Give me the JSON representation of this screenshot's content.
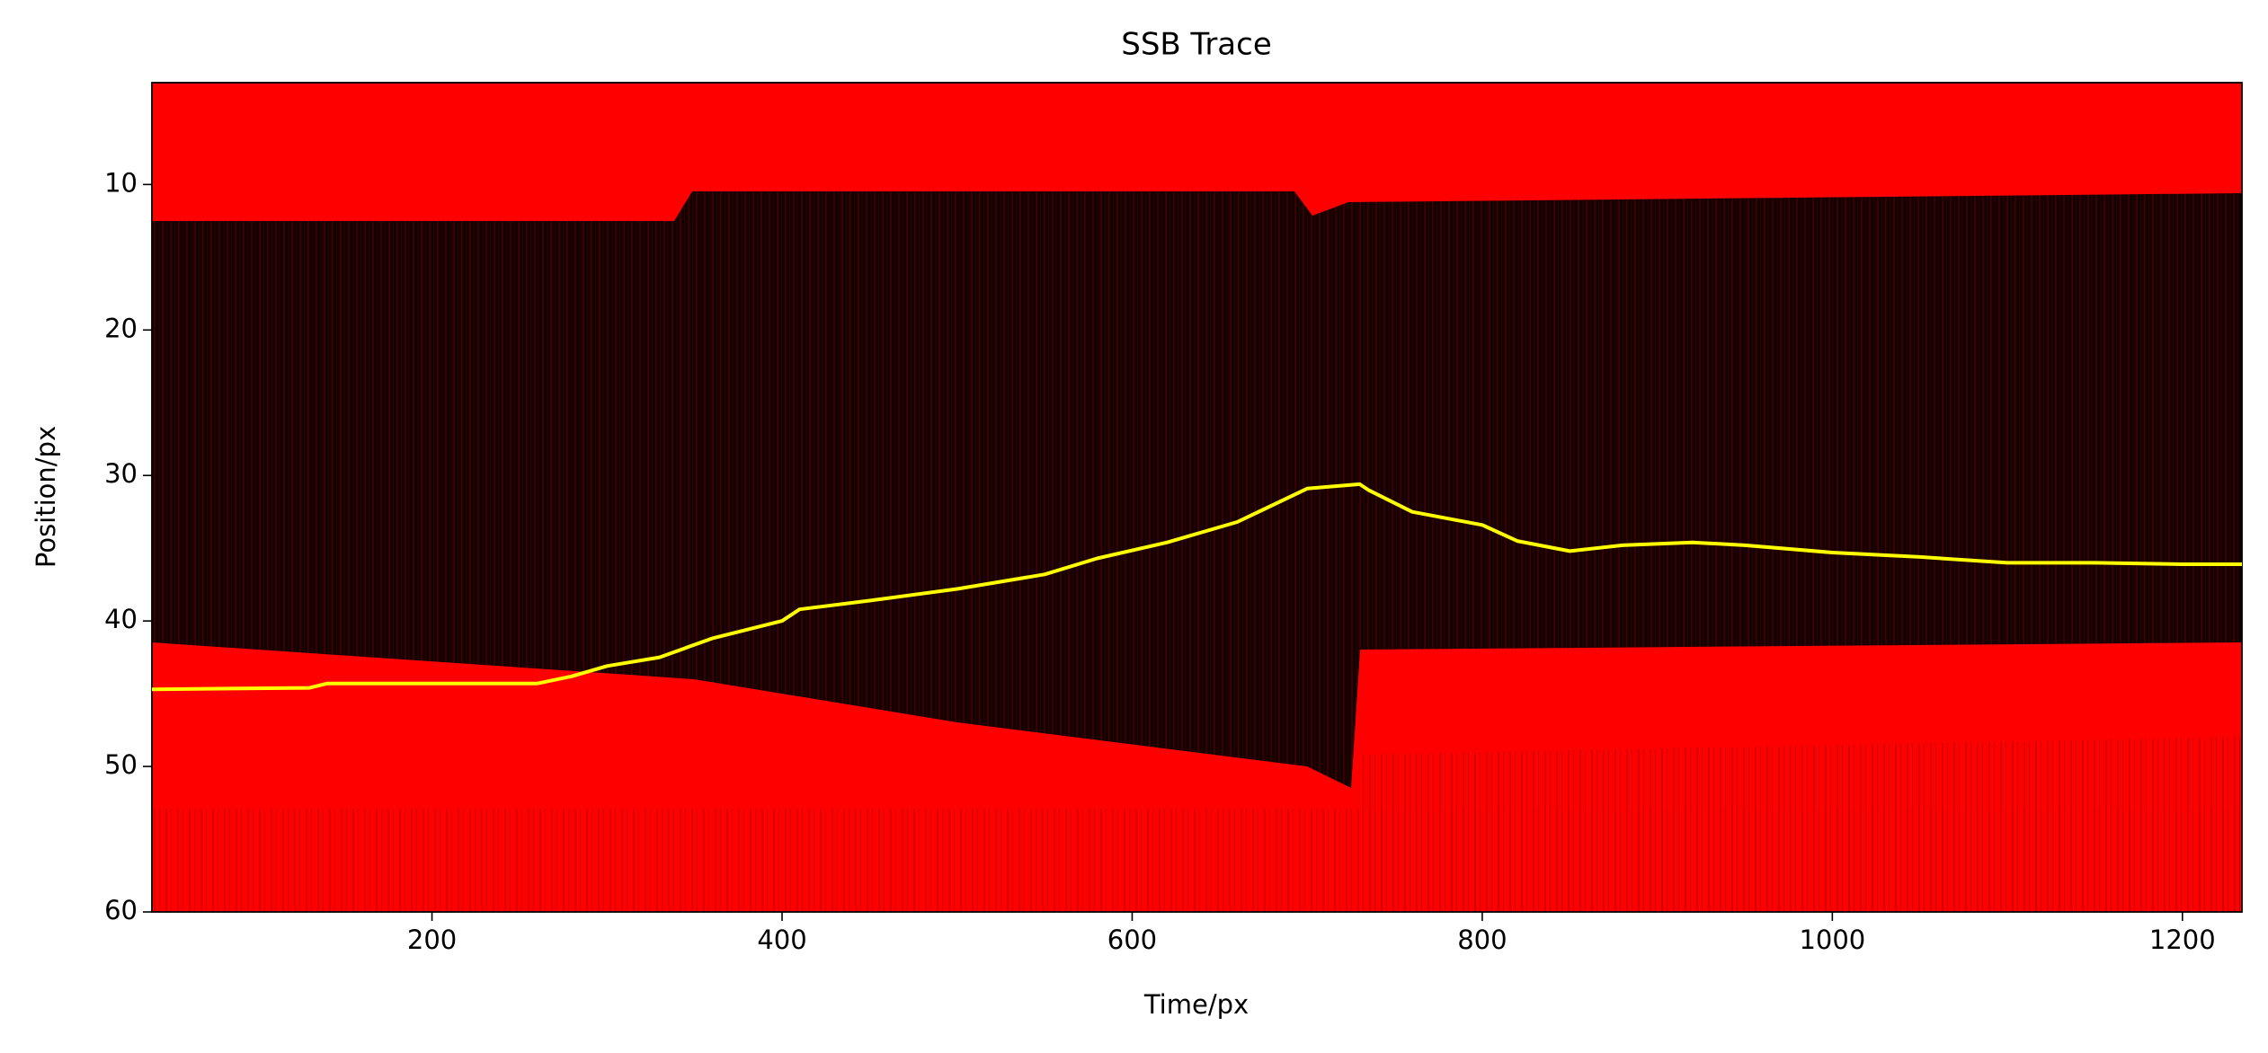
{
  "chart_data": {
    "type": "line",
    "title": "SSB Trace",
    "x_label": "Time/px",
    "y_label": "Position/px",
    "x": [
      40,
      130,
      140,
      260,
      280,
      300,
      330,
      360,
      400,
      410,
      450,
      500,
      550,
      580,
      620,
      660,
      700,
      730,
      735,
      760,
      800,
      820,
      850,
      880,
      920,
      950,
      1000,
      1050,
      1100,
      1150,
      1200,
      1234
    ],
    "values": [
      44.7,
      44.6,
      44.3,
      44.3,
      43.8,
      43.1,
      42.5,
      41.2,
      40.0,
      39.2,
      38.6,
      37.8,
      36.8,
      35.7,
      34.6,
      33.2,
      30.9,
      30.6,
      31.0,
      32.5,
      33.4,
      34.5,
      35.2,
      34.8,
      34.6,
      34.8,
      35.3,
      35.6,
      36.0,
      36.0,
      36.1,
      36.1
    ],
    "color": "#ffff00",
    "xlim": [
      40,
      1234
    ],
    "ylim": [
      3,
      60
    ],
    "y_inverted": true,
    "xticks": [
      200,
      400,
      600,
      800,
      1000,
      1200
    ],
    "yticks": [
      10,
      20,
      30,
      40,
      50,
      60
    ]
  }
}
